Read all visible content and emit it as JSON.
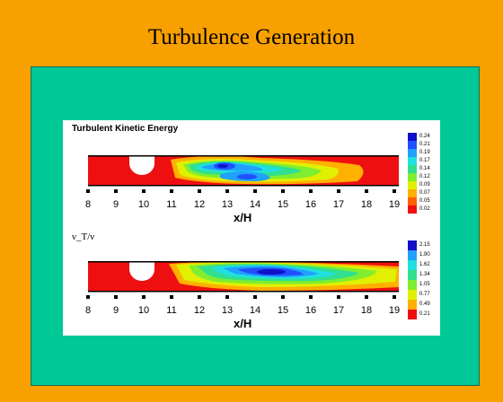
{
  "slide": {
    "title": "Turbulence Generation"
  },
  "plots": [
    {
      "title": "Turbulent Kinetic Energy",
      "legend": [
        "0.24",
        "0.21",
        "0.19",
        "0.17",
        "0.14",
        "0.12",
        "0.09",
        "0.07",
        "0.05",
        "0.02"
      ],
      "ticks": [
        "8",
        "9",
        "10",
        "11",
        "12",
        "13",
        "14",
        "15",
        "16",
        "17",
        "18",
        "19"
      ],
      "xlabel": "x/H"
    },
    {
      "title": "ν_T/ν",
      "legend": [
        "2.15",
        "1.90",
        "1.62",
        "1.34",
        "1.05",
        "0.77",
        "0.49",
        "0.21"
      ],
      "ticks": [
        "8",
        "9",
        "10",
        "11",
        "12",
        "13",
        "14",
        "15",
        "16",
        "17",
        "18",
        "19"
      ],
      "xlabel": "x/H"
    }
  ],
  "colors": {
    "background": "#f7a000",
    "panel": "#00c896",
    "contour_scale": [
      "#1010c8",
      "#2050ff",
      "#20a0ff",
      "#20e0e0",
      "#30e090",
      "#80ee30",
      "#e0f000",
      "#ffb000",
      "#ff6000",
      "#ee1010"
    ]
  }
}
